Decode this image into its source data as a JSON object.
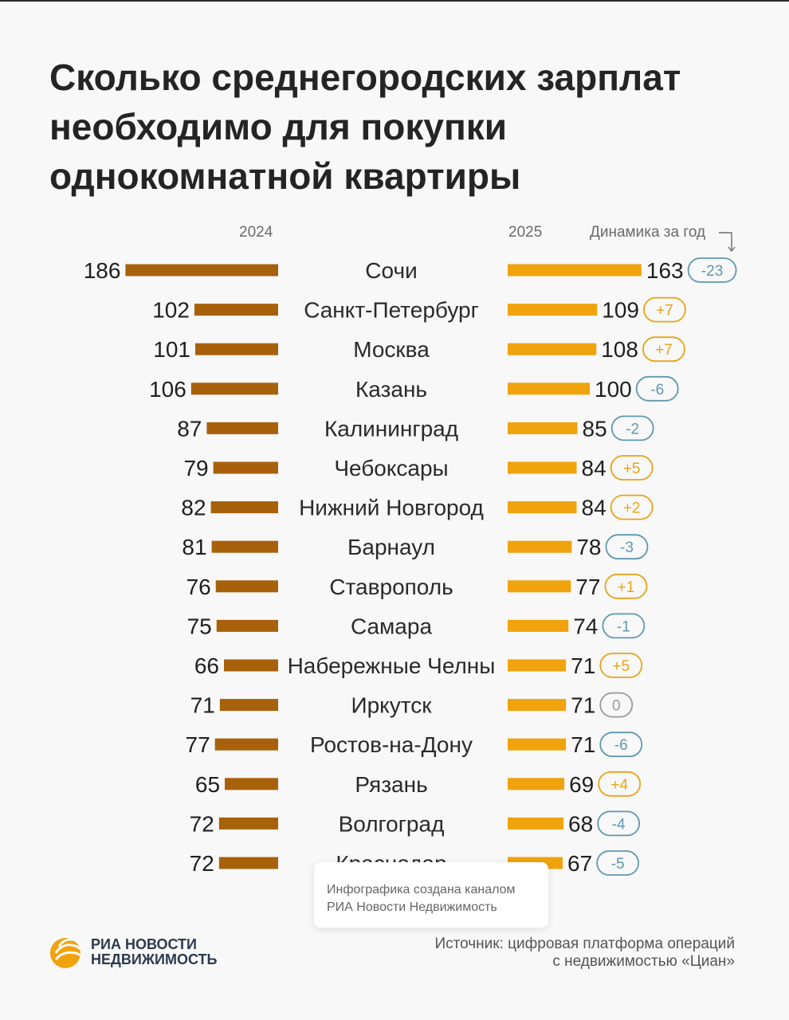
{
  "title": "Сколько среднегородских зарплат необходимо для покупки однокомнатной квартиры",
  "columns": {
    "year_a": "2024",
    "year_b": "2025",
    "dynamics": "Динамика за год"
  },
  "chart_data": {
    "type": "bar",
    "categories": [
      "Сочи",
      "Санкт-Петербург",
      "Москва",
      "Казань",
      "Калининград",
      "Чебоксары",
      "Нижний Новгород",
      "Барнаул",
      "Ставрополь",
      "Самара",
      "Набережные Челны",
      "Иркутск",
      "Ростов-на-Дону",
      "Рязань",
      "Волгоград",
      "Краснодар"
    ],
    "series": [
      {
        "name": "2024",
        "values": [
          186,
          102,
          101,
          106,
          87,
          79,
          82,
          81,
          76,
          75,
          66,
          71,
          77,
          65,
          72,
          72
        ]
      },
      {
        "name": "2025",
        "values": [
          163,
          109,
          108,
          100,
          85,
          84,
          84,
          78,
          77,
          74,
          71,
          71,
          71,
          69,
          68,
          67
        ]
      }
    ],
    "change_labels": [
      "-23",
      "+7",
      "+7",
      "-6",
      "-2",
      "+5",
      "+2",
      "-3",
      "+1",
      "-1",
      "+5",
      "0",
      "-6",
      "+4",
      "-4",
      "-5"
    ],
    "change_colors": {
      "positive": "#e8a317",
      "negative": "#5d98b0",
      "zero": "#9a9a9a"
    },
    "bar_colors": {
      "2024": "#a8610b",
      "2025": "#f0a30c"
    }
  },
  "note": {
    "line1": "Инфографика создана каналом",
    "line2": "РИА Новости Недвижимость"
  },
  "logo": {
    "line1": "РИА НОВОСТИ",
    "line2": "НЕДВИЖИМОСТЬ"
  },
  "source": {
    "line1": "Источник: цифровая платформа операций",
    "line2": "с недвижимостью «Циан»"
  }
}
